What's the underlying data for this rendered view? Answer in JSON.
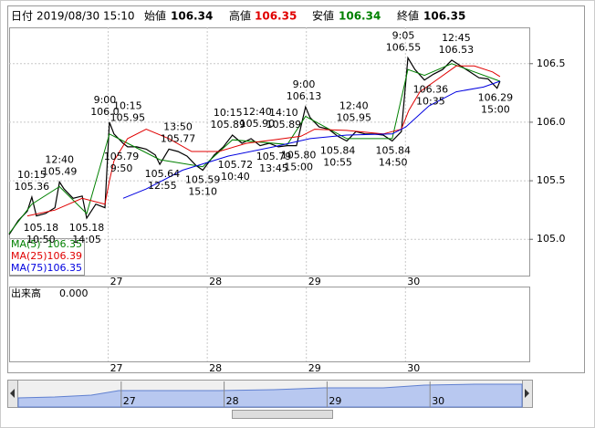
{
  "header": {
    "date_label": "日付",
    "date": "2019/08/30 15:10",
    "fields": [
      {
        "label": "始値",
        "value": 106.34
      },
      {
        "label": "高値",
        "value": 106.35
      },
      {
        "label": "安値",
        "value": 106.34
      },
      {
        "label": "終値",
        "value": 106.35
      }
    ]
  },
  "chart_data": {
    "type": "line",
    "xlim": [
      0,
      126
    ],
    "xticks": [
      {
        "value": 24,
        "label": "27"
      },
      {
        "value": 48,
        "label": "28"
      },
      {
        "value": 72,
        "label": "29"
      },
      {
        "value": 96,
        "label": "30"
      }
    ],
    "ylim": [
      104.69,
      106.81
    ],
    "yticks": [
      106.5,
      {
        "value": 106.0,
        "label": "106.0"
      },
      105.5,
      {
        "value": 105.0,
        "label": "105.0"
      }
    ],
    "grid": true,
    "series": [
      {
        "color": "#000000",
        "x": [
          0,
          2.2,
          4.4,
          5.5,
          6.6,
          8.8,
          11.1,
          12.2,
          13.3,
          15.5,
          17.7,
          18.8,
          21,
          23.2,
          24.3,
          25.4,
          27.6,
          28.7,
          30.9,
          33.2,
          35.4,
          36.5,
          38.7,
          40.9,
          43.1,
          44.2,
          45.3,
          46.9,
          49.7,
          51.9,
          54.1,
          56.4,
          58.6,
          60.8,
          63,
          65.2,
          67.4,
          69.6,
          71.8,
          72.9,
          75.1,
          77.4,
          79.6,
          81.8,
          84,
          86.2,
          88.4,
          90.6,
          92.8,
          95,
          96.6,
          98.3,
          100.6,
          102.8,
          105,
          107.2,
          109.4,
          111.6,
          113.8,
          116,
          118.2,
          118.9
        ],
        "values": [
          105.04,
          105.16,
          105.24,
          105.36,
          105.2,
          105.22,
          105.27,
          105.49,
          105.43,
          105.35,
          105.37,
          105.18,
          105.3,
          105.27,
          106.0,
          105.9,
          105.82,
          105.79,
          105.79,
          105.77,
          105.72,
          105.64,
          105.77,
          105.75,
          105.71,
          105.67,
          105.63,
          105.59,
          105.72,
          105.79,
          105.89,
          105.82,
          105.86,
          105.8,
          105.82,
          105.79,
          105.8,
          105.8,
          106.13,
          106.04,
          105.96,
          105.94,
          105.88,
          105.84,
          105.92,
          105.9,
          105.9,
          105.89,
          105.84,
          105.92,
          106.55,
          106.45,
          106.36,
          106.41,
          106.45,
          106.53,
          106.48,
          106.43,
          106.38,
          106.37,
          106.29,
          106.35
        ]
      },
      {
        "name": "MA(5)",
        "color": "#008000",
        "last": 106.35,
        "x": [
          0,
          5.5,
          12.2,
          18.8,
          24.3,
          28.7,
          36.5,
          46.9,
          54.1,
          67.4,
          71.8,
          81.8,
          92.8,
          96.6,
          100.6,
          107.2,
          118.9
        ],
        "values": [
          105.05,
          105.3,
          105.45,
          105.22,
          105.9,
          105.82,
          105.68,
          105.62,
          105.85,
          105.81,
          106.05,
          105.86,
          105.86,
          106.45,
          106.4,
          106.5,
          106.35
        ]
      },
      {
        "name": "MA(25)",
        "color": "#e00000",
        "last": 106.39,
        "x": [
          4.4,
          11.1,
          17.7,
          23.2,
          24.3,
          25.4,
          28.7,
          33.2,
          38.7,
          44.2,
          50.8,
          57.5,
          64.1,
          70.7,
          74,
          81.8,
          90.6,
          95,
          96.8,
          99.5,
          103.9,
          108.3,
          112.7,
          117.1,
          118.9
        ],
        "values": [
          105.2,
          105.25,
          105.35,
          105.3,
          105.5,
          105.67,
          105.86,
          105.94,
          105.86,
          105.75,
          105.75,
          105.82,
          105.85,
          105.88,
          105.94,
          105.93,
          105.9,
          105.94,
          106.1,
          106.26,
          106.37,
          106.48,
          106.48,
          106.43,
          106.39
        ]
      },
      {
        "name": "MA(75)",
        "color": "#0000e0",
        "last": 106.35,
        "x": [
          27.6,
          33.2,
          42,
          53,
          64.1,
          72.9,
          81.8,
          92.8,
          96.1,
          101.7,
          108.3,
          114.9,
          118.9
        ],
        "values": [
          105.35,
          105.43,
          105.59,
          105.71,
          105.79,
          105.86,
          105.89,
          105.9,
          105.96,
          106.14,
          106.26,
          106.3,
          106.35
        ]
      }
    ],
    "annotations": [
      {
        "x": 5.5,
        "value": 105.36,
        "label": "105.36",
        "time": "10:15",
        "position": "above"
      },
      {
        "x": 12.2,
        "value": 105.49,
        "label": "105.49",
        "time": "12:40",
        "position": "above"
      },
      {
        "x": 7.7,
        "value": 105.18,
        "label": "105.18",
        "time": "10:50",
        "position": "below"
      },
      {
        "x": 18.8,
        "value": 105.18,
        "label": "105.18",
        "time": "14:05",
        "position": "below"
      },
      {
        "x": 23.2,
        "value": 106.0,
        "label": "106.0",
        "time": "9:00",
        "position": "above"
      },
      {
        "x": 28.7,
        "value": 105.95,
        "label": "105.95",
        "time": "10:15",
        "position": "above"
      },
      {
        "x": 27.2,
        "value": 105.79,
        "label": "105.79",
        "time": "9:50",
        "position": "below"
      },
      {
        "x": 40.9,
        "value": 105.77,
        "label": "105.77",
        "time": "13:50",
        "position": "above"
      },
      {
        "x": 37.1,
        "value": 105.64,
        "label": "105.64",
        "time": "12:55",
        "position": "below"
      },
      {
        "x": 46.9,
        "value": 105.59,
        "label": "105.59",
        "time": "15:10",
        "position": "below"
      },
      {
        "x": 53,
        "value": 105.89,
        "label": "105.89",
        "time": "10:15",
        "position": "above"
      },
      {
        "x": 60.1,
        "value": 105.9,
        "label": "105.90",
        "time": "12:40",
        "position": "above"
      },
      {
        "x": 66.5,
        "value": 105.89,
        "label": "105.89",
        "time": "14:10",
        "position": "above"
      },
      {
        "x": 54.8,
        "value": 105.72,
        "label": "105.72",
        "time": "10:40",
        "position": "below"
      },
      {
        "x": 64.1,
        "value": 105.79,
        "label": "105.79",
        "time": "13:45",
        "position": "below"
      },
      {
        "x": 70.1,
        "value": 105.8,
        "label": "105.80",
        "time": "15:00",
        "position": "below"
      },
      {
        "x": 71.4,
        "value": 106.13,
        "label": "106.13",
        "time": "9:00",
        "position": "above"
      },
      {
        "x": 83.5,
        "value": 105.95,
        "label": "105.95",
        "time": "12:40",
        "position": "above"
      },
      {
        "x": 79.6,
        "value": 105.84,
        "label": "105.84",
        "time": "10:55",
        "position": "below"
      },
      {
        "x": 93,
        "value": 105.84,
        "label": "105.84",
        "time": "14:50",
        "position": "below"
      },
      {
        "x": 95.5,
        "value": 106.55,
        "label": "106.55",
        "time": "9:05",
        "position": "above"
      },
      {
        "x": 108.3,
        "value": 106.53,
        "label": "106.53",
        "time": "12:45",
        "position": "above"
      },
      {
        "x": 102.1,
        "value": 106.36,
        "label": "106.36",
        "time": "10:35",
        "position": "below"
      },
      {
        "x": 117.8,
        "value": 106.29,
        "label": "106.29",
        "time": "15:00",
        "position": "below"
      }
    ]
  },
  "volume_panel": {
    "label": "出来高",
    "value": "0.000"
  }
}
